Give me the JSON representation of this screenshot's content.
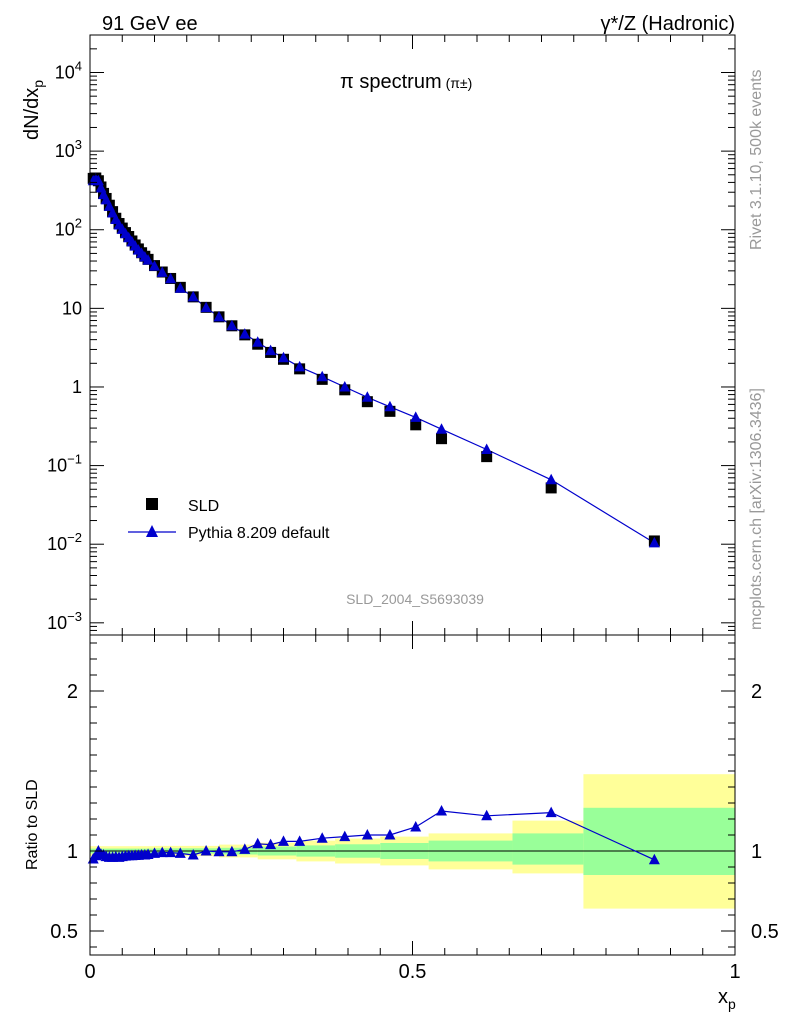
{
  "header": {
    "left": "91 GeV ee",
    "right": "γ*/Z (Hadronic)"
  },
  "side_labels": {
    "top": "Rivet 3.1.10,  500k events",
    "bottom": "mcplots.cern.ch [arXiv:1306.3436]"
  },
  "chart_data": [
    {
      "type": "scatter",
      "title": "π spectrum",
      "title_suffix": "(π±)",
      "ylabel": "dN/dx",
      "ylabel_sub": "p",
      "yscale": "log",
      "ylim": [
        0.0007,
        30000
      ],
      "xlim": [
        0,
        1
      ],
      "yticks": [
        {
          "v": 0.001,
          "base": "10",
          "exp": "−3"
        },
        {
          "v": 0.01,
          "base": "10",
          "exp": "−2"
        },
        {
          "v": 0.1,
          "base": "10",
          "exp": "−1"
        },
        {
          "v": 1,
          "base": "1",
          "exp": ""
        },
        {
          "v": 10,
          "base": "10",
          "exp": ""
        },
        {
          "v": 100,
          "base": "10",
          "exp": "2"
        },
        {
          "v": 1000,
          "base": "10",
          "exp": "3"
        },
        {
          "v": 10000,
          "base": "10",
          "exp": "4"
        }
      ],
      "watermark": "SLD_2004_S5693039",
      "legend": {
        "position": "bottom-left",
        "entries": [
          "SLD",
          "Pythia 8.209 default"
        ]
      },
      "series": [
        {
          "name": "SLD",
          "marker": "square",
          "color": "#000000",
          "points": [
            [
              0.005,
              450
            ],
            [
              0.009,
              455
            ],
            [
              0.013,
              420
            ],
            [
              0.017,
              350
            ],
            [
              0.021,
              290
            ],
            [
              0.025,
              250
            ],
            [
              0.03,
              205
            ],
            [
              0.035,
              170
            ],
            [
              0.04,
              140
            ],
            [
              0.045,
              120
            ],
            [
              0.05,
              105
            ],
            [
              0.055,
              92
            ],
            [
              0.06,
              82
            ],
            [
              0.065,
              72
            ],
            [
              0.07,
              64
            ],
            [
              0.075,
              57
            ],
            [
              0.08,
              51
            ],
            [
              0.085,
              46
            ],
            [
              0.09,
              42
            ],
            [
              0.1,
              35
            ],
            [
              0.112,
              29
            ],
            [
              0.125,
              24
            ],
            [
              0.14,
              18.5
            ],
            [
              0.16,
              14
            ],
            [
              0.18,
              10.3
            ],
            [
              0.2,
              7.8
            ],
            [
              0.22,
              6.0
            ],
            [
              0.24,
              4.6
            ],
            [
              0.26,
              3.5
            ],
            [
              0.28,
              2.75
            ],
            [
              0.3,
              2.25
            ],
            [
              0.325,
              1.7
            ],
            [
              0.36,
              1.25
            ],
            [
              0.395,
              0.92
            ],
            [
              0.43,
              0.65
            ],
            [
              0.465,
              0.49
            ],
            [
              0.505,
              0.33
            ],
            [
              0.545,
              0.22
            ],
            [
              0.615,
              0.13
            ],
            [
              0.715,
              0.052
            ],
            [
              0.875,
              0.011
            ]
          ]
        },
        {
          "name": "Pythia 8.209 default",
          "marker": "triangle",
          "color": "#0000cc",
          "points": [
            [
              0.005,
              420
            ],
            [
              0.009,
              440
            ],
            [
              0.013,
              420
            ],
            [
              0.017,
              340
            ],
            [
              0.021,
              280
            ],
            [
              0.025,
              240
            ],
            [
              0.03,
              198
            ],
            [
              0.035,
              163
            ],
            [
              0.04,
              135
            ],
            [
              0.045,
              115
            ],
            [
              0.05,
              101
            ],
            [
              0.055,
              89
            ],
            [
              0.06,
              79
            ],
            [
              0.065,
              70
            ],
            [
              0.07,
              62
            ],
            [
              0.075,
              55
            ],
            [
              0.08,
              50
            ],
            [
              0.085,
              45
            ],
            [
              0.09,
              41
            ],
            [
              0.1,
              34.5
            ],
            [
              0.112,
              28.7
            ],
            [
              0.125,
              23.8
            ],
            [
              0.14,
              18
            ],
            [
              0.16,
              14
            ],
            [
              0.18,
              10.2
            ],
            [
              0.2,
              7.8
            ],
            [
              0.22,
              6.0
            ],
            [
              0.24,
              4.7
            ],
            [
              0.26,
              3.7
            ],
            [
              0.28,
              2.9
            ],
            [
              0.3,
              2.35
            ],
            [
              0.325,
              1.8
            ],
            [
              0.36,
              1.35
            ],
            [
              0.395,
              1.0
            ],
            [
              0.43,
              0.74
            ],
            [
              0.465,
              0.56
            ],
            [
              0.505,
              0.41
            ],
            [
              0.545,
              0.29
            ],
            [
              0.615,
              0.16
            ],
            [
              0.715,
              0.066
            ],
            [
              0.875,
              0.0104
            ]
          ]
        }
      ]
    },
    {
      "type": "line",
      "ylabel": "Ratio to SLD",
      "xlabel": "x",
      "xlabel_sub": "p",
      "xlim": [
        0,
        1
      ],
      "ylim": [
        0.35,
        2.35
      ],
      "yticks": [
        {
          "v": 0.5,
          "label": "0.5"
        },
        {
          "v": 1,
          "label": "1"
        },
        {
          "v": 2,
          "label": "2"
        }
      ],
      "xticks": [
        {
          "v": 0,
          "label": "0"
        },
        {
          "v": 0.5,
          "label": "0.5"
        },
        {
          "v": 1,
          "label": "1"
        }
      ],
      "reference_line": 1,
      "bands": {
        "inner_color": "#99ff99",
        "outer_color": "#ffff99",
        "bins": [
          {
            "x0": 0.0,
            "x1": 0.1,
            "inner": [
              0.985,
              1.015
            ],
            "outer": [
              0.97,
              1.03
            ]
          },
          {
            "x0": 0.1,
            "x1": 0.2,
            "inner": [
              0.983,
              1.017
            ],
            "outer": [
              0.968,
              1.032
            ]
          },
          {
            "x0": 0.2,
            "x1": 0.26,
            "inner": [
              0.978,
              1.02
            ],
            "outer": [
              0.96,
              1.04
            ]
          },
          {
            "x0": 0.26,
            "x1": 0.32,
            "inner": [
              0.972,
              1.028
            ],
            "outer": [
              0.948,
              1.052
            ]
          },
          {
            "x0": 0.32,
            "x1": 0.38,
            "inner": [
              0.965,
              1.035
            ],
            "outer": [
              0.935,
              1.065
            ]
          },
          {
            "x0": 0.38,
            "x1": 0.45,
            "inner": [
              0.958,
              1.042
            ],
            "outer": [
              0.922,
              1.078
            ]
          },
          {
            "x0": 0.45,
            "x1": 0.525,
            "inner": [
              0.95,
              1.05
            ],
            "outer": [
              0.91,
              1.09
            ]
          },
          {
            "x0": 0.525,
            "x1": 0.655,
            "inner": [
              0.935,
              1.065
            ],
            "outer": [
              0.885,
              1.11
            ]
          },
          {
            "x0": 0.655,
            "x1": 0.765,
            "inner": [
              0.915,
              1.11
            ],
            "outer": [
              0.86,
              1.19
            ]
          },
          {
            "x0": 0.765,
            "x1": 1.0,
            "inner": [
              0.85,
              1.27
            ],
            "outer": [
              0.64,
              1.48
            ]
          }
        ]
      },
      "series": [
        {
          "name": "Pythia 8.209 default",
          "marker": "triangle",
          "color": "#0000cc",
          "points": [
            [
              0.005,
              0.95
            ],
            [
              0.009,
              0.97
            ],
            [
              0.013,
              1.0
            ],
            [
              0.017,
              0.98
            ],
            [
              0.021,
              0.975
            ],
            [
              0.025,
              0.965
            ],
            [
              0.03,
              0.96
            ],
            [
              0.035,
              0.96
            ],
            [
              0.04,
              0.963
            ],
            [
              0.045,
              0.96
            ],
            [
              0.05,
              0.965
            ],
            [
              0.055,
              0.968
            ],
            [
              0.06,
              0.97
            ],
            [
              0.065,
              0.97
            ],
            [
              0.07,
              0.972
            ],
            [
              0.075,
              0.973
            ],
            [
              0.08,
              0.975
            ],
            [
              0.085,
              0.975
            ],
            [
              0.09,
              0.978
            ],
            [
              0.1,
              0.985
            ],
            [
              0.112,
              0.99
            ],
            [
              0.125,
              0.99
            ],
            [
              0.14,
              0.985
            ],
            [
              0.16,
              0.975
            ],
            [
              0.18,
              1.0
            ],
            [
              0.2,
              0.995
            ],
            [
              0.22,
              0.995
            ],
            [
              0.24,
              1.01
            ],
            [
              0.26,
              1.045
            ],
            [
              0.28,
              1.04
            ],
            [
              0.3,
              1.06
            ],
            [
              0.325,
              1.06
            ],
            [
              0.36,
              1.08
            ],
            [
              0.395,
              1.09
            ],
            [
              0.43,
              1.1
            ],
            [
              0.465,
              1.1
            ],
            [
              0.505,
              1.15
            ],
            [
              0.545,
              1.25
            ],
            [
              0.615,
              1.22
            ],
            [
              0.715,
              1.24
            ],
            [
              0.875,
              0.945
            ]
          ]
        }
      ]
    }
  ]
}
